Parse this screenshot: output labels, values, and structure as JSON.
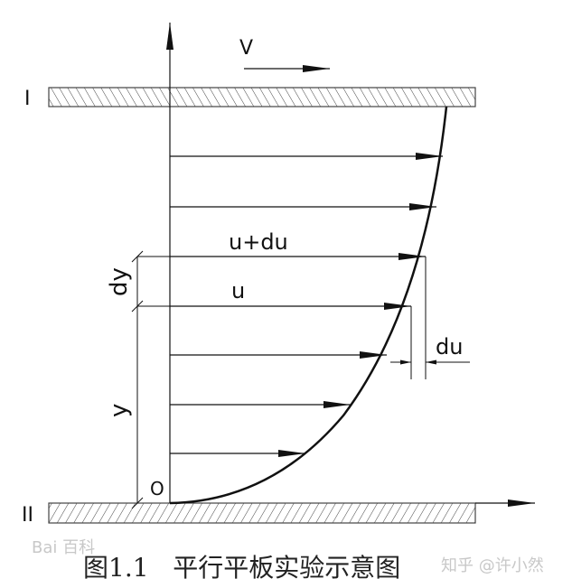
{
  "labels": {
    "velocity": "V",
    "plate_top": "I",
    "plate_bottom": "II",
    "u_plus_du": "u+du",
    "u": "u",
    "dy": "dy",
    "y": "y",
    "du": "du",
    "origin": "O"
  },
  "caption": "图1.1   平行平板实验示意图",
  "watermarks": {
    "left": "Bai 百科",
    "right": "知乎 @许小然"
  },
  "colors": {
    "ink": "#111111",
    "hatch": "#444444",
    "watermark": "#c8c8c8"
  }
}
